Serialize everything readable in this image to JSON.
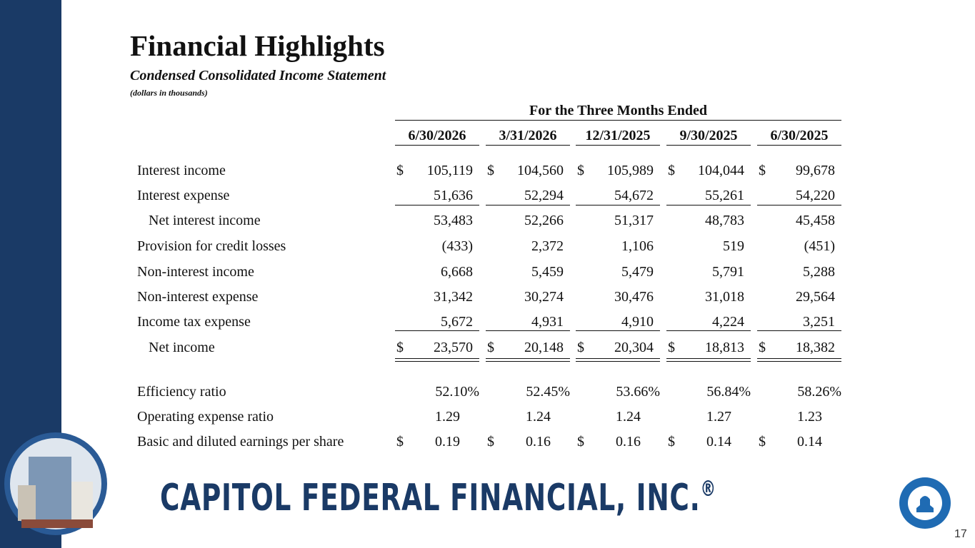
{
  "header": {
    "title": "Financial Highlights",
    "subtitle": "Condensed Consolidated Income Statement",
    "note": "(dollars in thousands)"
  },
  "table": {
    "period_header": "For the Three Months Ended",
    "currency_symbol": "$",
    "columns": [
      "6/30/2026",
      "3/31/2026",
      "12/31/2025",
      "9/30/2025",
      "6/30/2025"
    ],
    "rows": [
      {
        "label": "Interest income",
        "values": [
          "105,119",
          "104,560",
          "105,989",
          "104,044",
          "99,678"
        ]
      },
      {
        "label": "Interest expense",
        "values": [
          "51,636",
          "52,294",
          "54,672",
          "55,261",
          "54,220"
        ]
      },
      {
        "label": "Net interest income",
        "values": [
          "53,483",
          "52,266",
          "51,317",
          "48,783",
          "45,458"
        ]
      },
      {
        "label": "Provision for credit losses",
        "values": [
          "(433)",
          "2,372",
          "1,106",
          "519",
          "(451)"
        ]
      },
      {
        "label": "Non-interest income",
        "values": [
          "6,668",
          "5,459",
          "5,479",
          "5,791",
          "5,288"
        ]
      },
      {
        "label": "Non-interest expense",
        "values": [
          "31,342",
          "30,274",
          "30,476",
          "31,018",
          "29,564"
        ]
      },
      {
        "label": "Income tax expense",
        "values": [
          "5,672",
          "4,931",
          "4,910",
          "4,224",
          "3,251"
        ]
      },
      {
        "label": "Net income",
        "values": [
          "23,570",
          "20,148",
          "20,304",
          "18,813",
          "18,382"
        ]
      },
      {
        "label": "Efficiency ratio",
        "values": [
          "52.10%",
          "52.45%",
          "53.66%",
          "56.84%",
          "58.26%"
        ]
      },
      {
        "label": "Operating expense ratio",
        "values": [
          "1.29",
          "1.24",
          "1.24",
          "1.27",
          "1.23"
        ]
      },
      {
        "label": "Basic and diluted earnings per share",
        "values": [
          "0.19",
          "0.16",
          "0.16",
          "0.14",
          "0.14"
        ]
      }
    ]
  },
  "footer": {
    "company": "CAPITOL FEDERAL FINANCIAL, INC.",
    "registered": "®",
    "page_number": "17"
  }
}
